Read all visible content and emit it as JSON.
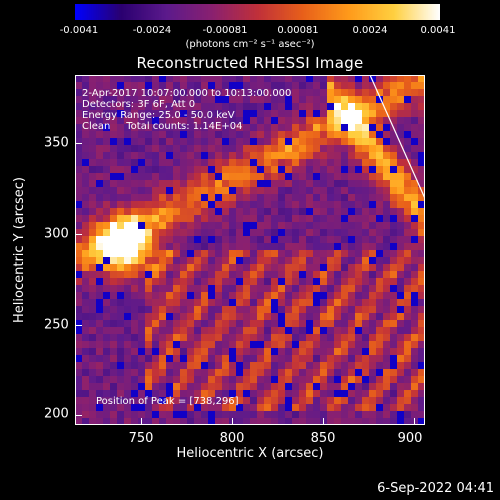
{
  "colorbar": {
    "tick_labels": [
      "-0.0041",
      "-0.0024",
      "-0.00081",
      "0.00081",
      "0.0024",
      "0.0041"
    ],
    "units": "(photons cm⁻² s⁻¹ asec⁻²)",
    "range": [
      -0.0041,
      0.0041
    ]
  },
  "plot": {
    "title": "Reconstructed RHESSI Image",
    "info_lines": [
      "2-Apr-2017 10:07:00.000 to 10:13:00.000",
      "Detectors: 3F 6F, Att 0",
      "Energy Range: 25.0 - 50.0 keV",
      "Clean     Total counts: 1.14E+04"
    ],
    "peak_label": "Position of Peak = [738,296]",
    "x_axis_title": "Heliocentric X (arcsec)",
    "y_axis_title": "Heliocentric Y (arcsec)",
    "x_ticks": [
      "750",
      "800",
      "850",
      "900"
    ],
    "y_ticks": [
      "350",
      "300",
      "250",
      "200"
    ],
    "x_range": [
      713,
      905
    ],
    "y_range": [
      195,
      387
    ]
  },
  "timestamp": "6-Sep-2022 04:41",
  "colors": {
    "background": "#000000",
    "text": "#ffffff",
    "colormap": [
      "#0000ff",
      "#2a0070",
      "#5c1a8c",
      "#8a2070",
      "#c0303a",
      "#e8601a",
      "#ff9a1a",
      "#ffd040",
      "#ffffff"
    ]
  }
}
